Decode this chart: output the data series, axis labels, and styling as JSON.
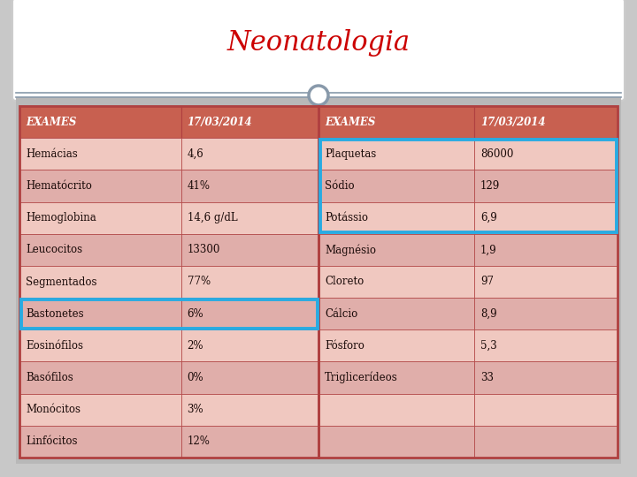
{
  "title": "Neonatologia",
  "title_color": "#cc0000",
  "page_bg": "#c8c8c8",
  "title_box_bg": "#ffffff",
  "table_area_bg": "#b8b8b8",
  "table_outer_border_color": "#b04040",
  "header_bg_color": "#c86050",
  "header_text_color": "#ffffff",
  "row_bg_even": "#f0c8c0",
  "row_bg_odd": "#e0aeaa",
  "row_text_color": "#1a0a08",
  "highlight_border_color": "#29abe2",
  "circle_fill": "#ffffff",
  "circle_border": "#8899aa",
  "divider_color": "#8899aa",
  "left_table": {
    "headers": [
      "EXAMES",
      "17/03/2014"
    ],
    "rows": [
      [
        "Hemácias",
        "4,6"
      ],
      [
        "Hematócrito",
        "41%"
      ],
      [
        "Hemoglobina",
        "14,6 g/dL"
      ],
      [
        "Leucocitos",
        "13300"
      ],
      [
        "Segmentados",
        "77%"
      ],
      [
        "Bastonetes",
        "6%"
      ],
      [
        "Eosinófilos",
        "2%"
      ],
      [
        "Basófilos",
        "0%"
      ],
      [
        "Monócitos",
        "3%"
      ],
      [
        "Linfócitos",
        "12%"
      ]
    ],
    "highlight_rows": [
      5
    ]
  },
  "right_table": {
    "headers": [
      "EXAMES",
      "17/03/2014"
    ],
    "rows": [
      [
        "Plaquetas",
        "86000"
      ],
      [
        "Sódio",
        "129"
      ],
      [
        "Potássio",
        "6,9"
      ],
      [
        "Magnésio",
        "1,9"
      ],
      [
        "Cloreto",
        "97"
      ],
      [
        "Cálcio",
        "8,9"
      ],
      [
        "Fósforo",
        "5,3"
      ],
      [
        "Triglicerídeos",
        "33"
      ],
      [
        "",
        ""
      ],
      [
        "",
        ""
      ]
    ],
    "highlight_rows": [
      0,
      1,
      2
    ]
  },
  "figsize": [
    7.2,
    5.4
  ],
  "dpi": 100
}
